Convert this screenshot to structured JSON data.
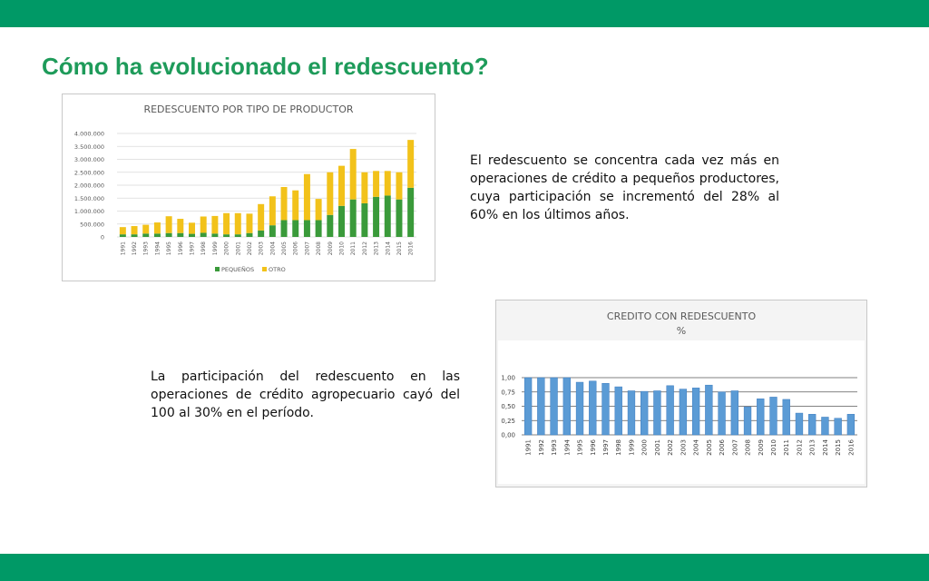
{
  "header": {
    "title": "Cómo ha evolucionado el redescuento?"
  },
  "colors": {
    "band": "#009966",
    "pequenos": "#3a9a3a",
    "otro": "#f2c21a",
    "credito": "#5b9bd5"
  },
  "text": {
    "paragraph_1": "El redescuento se concentra cada vez más en operaciones de crédito a pequeños productores, cuya participación se incrementó del 28% al 60% en los últimos años.",
    "paragraph_2": "La participación del redescuento en las operaciones de crédito agropecuario cayó del 100 al 30% en el período."
  },
  "chart_data": [
    {
      "type": "bar",
      "stacked": true,
      "title": "REDESCUENTO POR TIPO DE PRODUCTOR",
      "categories": [
        "1991",
        "1992",
        "1993",
        "1994",
        "1995",
        "1996",
        "1997",
        "1998",
        "1999",
        "2000",
        "2001",
        "2002",
        "2003",
        "2004",
        "2005",
        "2006",
        "2007",
        "2008",
        "2009",
        "2010",
        "2011",
        "2012",
        "2013",
        "2014",
        "2015",
        "2016"
      ],
      "series": [
        {
          "name": "PEQUEÑOS",
          "values": [
            100,
            100,
            130,
            130,
            150,
            150,
            120,
            160,
            130,
            100,
            100,
            150,
            250,
            450,
            650,
            650,
            650,
            650,
            850,
            1200,
            1450,
            1300,
            1550,
            1600,
            1450,
            1900
          ]
        },
        {
          "name": "OTRO",
          "values": [
            280,
            320,
            340,
            430,
            650,
            550,
            430,
            630,
            680,
            820,
            820,
            750,
            1020,
            1120,
            1280,
            1150,
            1780,
            820,
            1650,
            1550,
            1950,
            1200,
            1000,
            950,
            1050,
            1850
          ]
        }
      ],
      "yticks": [
        "0",
        "500.000",
        "1.000.000",
        "1.500.000",
        "2.000.000",
        "2.500.000",
        "3.000.000",
        "3.500.000",
        "4.000.000"
      ],
      "ylim": [
        0,
        4000
      ],
      "grid": true,
      "legend": "bottom"
    },
    {
      "type": "bar",
      "title": "CREDITO CON REDESCUENTO",
      "subtitle": "%",
      "categories": [
        "1991",
        "1992",
        "1993",
        "1994",
        "1995",
        "1996",
        "1997",
        "1998",
        "1999",
        "2000",
        "2001",
        "2002",
        "2003",
        "2004",
        "2005",
        "2006",
        "2007",
        "2008",
        "2009",
        "2010",
        "2011",
        "2012",
        "2013",
        "2014",
        "2015",
        "2016"
      ],
      "values": [
        1.0,
        1.0,
        1.0,
        1.0,
        0.92,
        0.94,
        0.9,
        0.84,
        0.77,
        0.76,
        0.77,
        0.86,
        0.8,
        0.82,
        0.87,
        0.75,
        0.77,
        0.49,
        0.63,
        0.66,
        0.62,
        0.38,
        0.36,
        0.31,
        0.29,
        0.36
      ],
      "yticks": [
        "0,00",
        "0,25",
        "0,50",
        "0,75",
        "1,00"
      ],
      "ylim": [
        0,
        1
      ],
      "grid": true,
      "legend": "none"
    }
  ]
}
